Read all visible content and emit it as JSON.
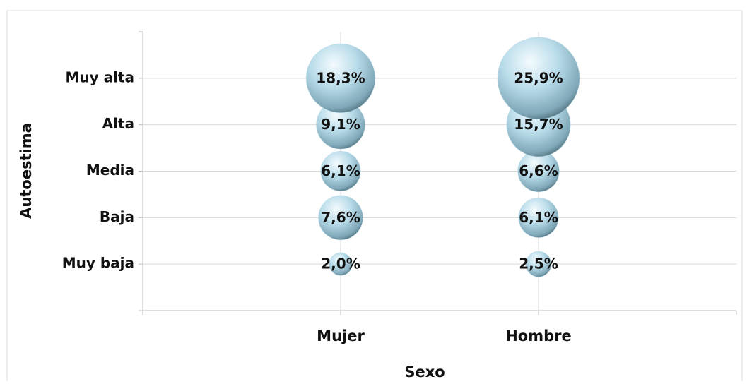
{
  "chart_data": {
    "type": "bubble",
    "x_label": "Sexo",
    "y_label": "Autoestima",
    "categories": [
      "Mujer",
      "Hombre"
    ],
    "y_categories": [
      "Muy baja",
      "Baja",
      "Media",
      "Alta",
      "Muy alta"
    ],
    "values": [
      [
        2.0,
        7.6,
        6.1,
        9.1,
        18.3
      ],
      [
        2.5,
        6.1,
        6.6,
        15.7,
        25.9
      ]
    ],
    "value_labels": [
      [
        "2,0%",
        "7,6%",
        "6,1%",
        "9,1%",
        "18,3%"
      ],
      [
        "2,5%",
        "6,1%",
        "6,6%",
        "15,7%",
        "25,9%"
      ]
    ],
    "color": "#a9d3e3",
    "grid": true
  }
}
